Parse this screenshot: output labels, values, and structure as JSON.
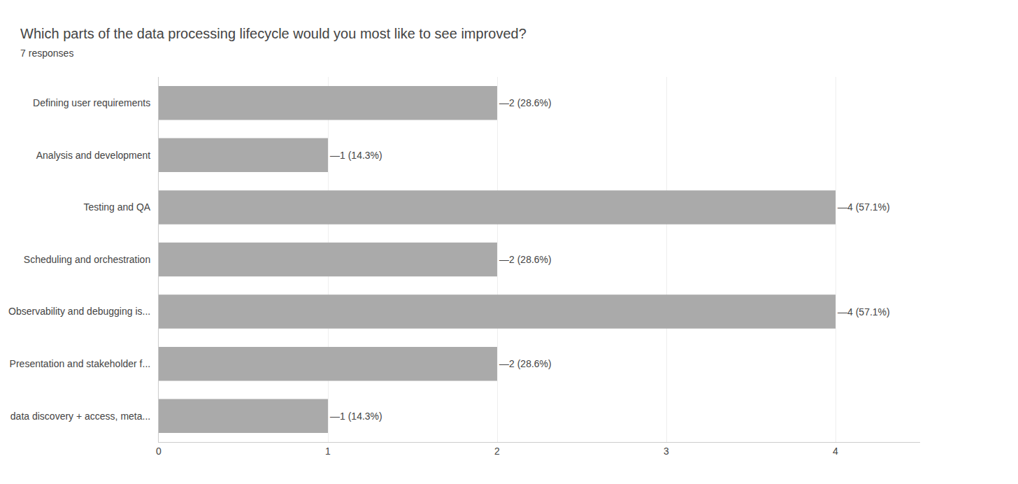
{
  "chart_data": {
    "type": "bar",
    "orientation": "horizontal",
    "title": "Which parts of the data processing lifecycle would you most like to see improved?",
    "subtitle": "7 responses",
    "categories": [
      "Defining user requirements",
      "Analysis and development",
      "Testing and QA",
      "Scheduling and orchestration",
      "Observability and debugging is...",
      "Presentation and stakeholder f...",
      "data discovery + access, meta..."
    ],
    "values": [
      2,
      1,
      4,
      2,
      4,
      2,
      1
    ],
    "data_labels": true,
    "value_labels": [
      "—2 (28.6%)",
      "—1 (14.3%)",
      "—4 (57.1%)",
      "—2 (28.6%)",
      "—4 (57.1%)",
      "—2 (28.6%)",
      "—1 (14.3%)"
    ],
    "color": "#aaaaaa",
    "xlim": [
      0,
      4.5
    ],
    "xticks": [
      0,
      1,
      2,
      3,
      4
    ],
    "grid": true
  }
}
